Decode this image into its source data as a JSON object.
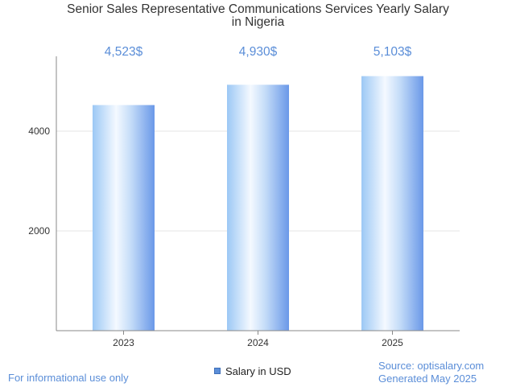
{
  "title_lines": [
    "Senior Sales Representative Communications Services Yearly Salary",
    "in Nigeria"
  ],
  "chart_data": {
    "type": "bar",
    "categories": [
      "2023",
      "2024",
      "2025"
    ],
    "values": [
      4523,
      4930,
      5103
    ],
    "value_labels": [
      "4,523$",
      "4,930$",
      "5,103$"
    ],
    "series": [
      {
        "name": "Salary in USD",
        "values": [
          4523,
          4930,
          5103
        ]
      }
    ],
    "ylim": [
      0,
      5500
    ],
    "yticks": [
      2000,
      4000
    ],
    "grid": true,
    "legend": "bottom-center",
    "colors": {
      "bar_light": "#eef6ff",
      "bar_mid": "#9cc8f5",
      "bar_dark": "#6a98e8",
      "label": "#5b8ed8",
      "grid": "#e6e6e6",
      "axis": "#888888"
    }
  },
  "legend_label": "Salary in USD",
  "footer": {
    "left": "For informational use only",
    "source": "Source: optisalary.com",
    "generated": "Generated May 2025"
  }
}
